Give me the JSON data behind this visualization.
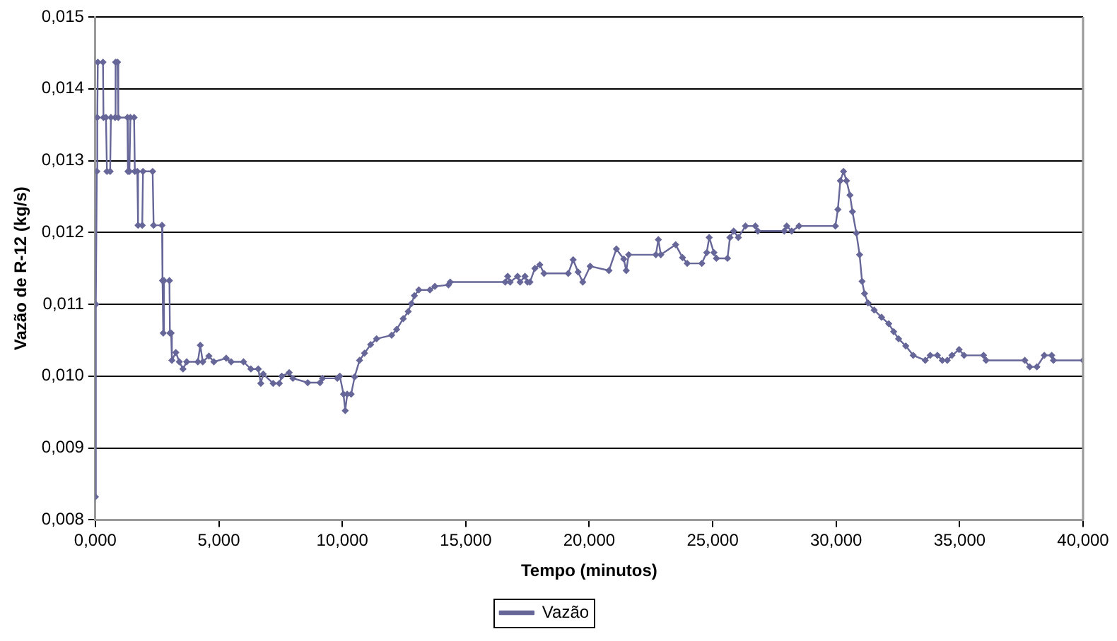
{
  "chart_data": {
    "type": "line",
    "xlabel": "Tempo (minutos)",
    "ylabel": "Vazão de R-12 (kg/s)",
    "xlim": [
      0,
      40
    ],
    "xticks": [
      {
        "value": 0,
        "label": "0,000"
      },
      {
        "value": 5,
        "label": "5,000"
      },
      {
        "value": 10,
        "label": "10,000"
      },
      {
        "value": 15,
        "label": "15,000"
      },
      {
        "value": 20,
        "label": "20,000"
      },
      {
        "value": 25,
        "label": "25,000"
      },
      {
        "value": 30,
        "label": "30,000"
      },
      {
        "value": 35,
        "label": "35,000"
      },
      {
        "value": 40,
        "label": "40,000"
      }
    ],
    "ylim": [
      0.008,
      0.015
    ],
    "yticks": [
      {
        "value": 0.008,
        "label": "0,008"
      },
      {
        "value": 0.009,
        "label": "0,009"
      },
      {
        "value": 0.01,
        "label": "0,010"
      },
      {
        "value": 0.011,
        "label": "0,011"
      },
      {
        "value": 0.012,
        "label": "0,012"
      },
      {
        "value": 0.013,
        "label": "0,013"
      },
      {
        "value": 0.014,
        "label": "0,014"
      },
      {
        "value": 0.015,
        "label": "0,015"
      }
    ],
    "grid": "y",
    "legend": "bottom",
    "marker": "diamond",
    "line_style": "solid",
    "x": [
      0,
      0.02,
      0.06,
      0.08,
      0.1,
      0.31,
      0.33,
      0.43,
      0.47,
      0.6,
      0.63,
      0.8,
      0.82,
      0.9,
      0.93,
      1.3,
      1.32,
      1.38,
      1.42,
      1.57,
      1.6,
      1.7,
      1.73,
      1.9,
      1.93,
      2.32,
      2.36,
      2.7,
      2.72,
      2.75,
      2.78,
      3,
      3.02,
      3.07,
      3.1,
      3.26,
      3.4,
      3.55,
      3.7,
      4.15,
      4.25,
      4.35,
      4.6,
      4.8,
      5.3,
      5.5,
      6,
      6.3,
      6.6,
      6.7,
      6.8,
      7.2,
      7.45,
      7.55,
      7.85,
      8,
      8.6,
      9.1,
      9.2,
      9.8,
      9.9,
      10.05,
      10.12,
      10.2,
      10.36,
      10.5,
      10.7,
      10.9,
      11.15,
      11.39,
      12,
      12.2,
      12.47,
      12.67,
      12.8,
      12.92,
      13.1,
      13.55,
      13.75,
      14.3,
      14.37,
      16.6,
      16.7,
      16.8,
      17.1,
      17.2,
      17.4,
      17.5,
      17.6,
      17.8,
      18,
      18.17,
      19.15,
      19.35,
      19.55,
      19.74,
      20.04,
      20.8,
      21.1,
      21.4,
      21.5,
      21.6,
      22.7,
      22.8,
      22.9,
      23.5,
      23.78,
      23.97,
      24.56,
      24.76,
      24.86,
      25.05,
      25.15,
      25.6,
      25.7,
      25.85,
      26.04,
      26.33,
      26.73,
      26.83,
      27.9,
      28,
      28.2,
      28.5,
      29.97,
      30.07,
      30.17,
      30.3,
      30.42,
      30.56,
      30.66,
      30.82,
      30.95,
      31.05,
      31.15,
      31.29,
      31.54,
      31.84,
      32.13,
      32.33,
      32.53,
      32.82,
      33.12,
      33.61,
      33.81,
      34.1,
      34.3,
      34.5,
      34.69,
      34.98,
      35.18,
      35.97,
      36.07,
      37.64,
      37.84,
      38.13,
      38.43,
      38.73,
      38.8,
      40
    ],
    "series": [
      {
        "name": "Vazão",
        "color": "#666699",
        "values": [
          0.00832,
          0.011,
          0.01285,
          0.0136,
          0.01437,
          0.01437,
          0.0136,
          0.0136,
          0.01285,
          0.01285,
          0.0136,
          0.0136,
          0.01437,
          0.01437,
          0.0136,
          0.0136,
          0.01285,
          0.01285,
          0.0136,
          0.0136,
          0.01285,
          0.01285,
          0.0121,
          0.0121,
          0.01285,
          0.01285,
          0.0121,
          0.0121,
          0.01133,
          0.0106,
          0.01133,
          0.01133,
          0.0106,
          0.0106,
          0.01022,
          0.01033,
          0.0102,
          0.0101,
          0.0102,
          0.0102,
          0.01043,
          0.0102,
          0.01028,
          0.0102,
          0.01025,
          0.0102,
          0.0102,
          0.0101,
          0.0101,
          0.0099,
          0.01003,
          0.0099,
          0.0099,
          0.01,
          0.01005,
          0.00997,
          0.00991,
          0.00991,
          0.00997,
          0.00997,
          0.01,
          0.00975,
          0.00952,
          0.00975,
          0.00975,
          0.00999,
          0.01022,
          0.01032,
          0.01044,
          0.01052,
          0.01057,
          0.01065,
          0.0108,
          0.0109,
          0.01101,
          0.01112,
          0.0112,
          0.0112,
          0.01125,
          0.01127,
          0.01131,
          0.01131,
          0.01139,
          0.01131,
          0.01139,
          0.01131,
          0.01139,
          0.01131,
          0.01131,
          0.0115,
          0.01155,
          0.01143,
          0.01143,
          0.01162,
          0.01145,
          0.01131,
          0.01153,
          0.01147,
          0.01177,
          0.01163,
          0.01147,
          0.01169,
          0.01169,
          0.0119,
          0.01169,
          0.01183,
          0.01165,
          0.01157,
          0.01157,
          0.01172,
          0.01193,
          0.01172,
          0.01164,
          0.01164,
          0.01193,
          0.01202,
          0.01193,
          0.01209,
          0.01209,
          0.01202,
          0.01202,
          0.01209,
          0.01202,
          0.01209,
          0.01209,
          0.01232,
          0.01272,
          0.01285,
          0.01272,
          0.01252,
          0.01229,
          0.01199,
          0.01169,
          0.01132,
          0.01115,
          0.01102,
          0.01092,
          0.01082,
          0.01073,
          0.01062,
          0.01052,
          0.01042,
          0.01029,
          0.01022,
          0.01029,
          0.01029,
          0.01022,
          0.01022,
          0.01029,
          0.01037,
          0.01029,
          0.01029,
          0.01022,
          0.01022,
          0.01013,
          0.01013,
          0.01029,
          0.01029,
          0.01022,
          0.01022
        ]
      }
    ]
  }
}
